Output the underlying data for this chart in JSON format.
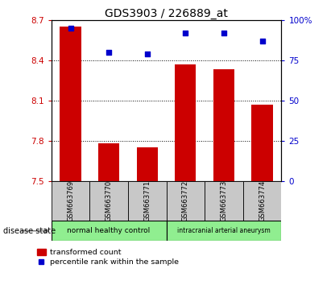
{
  "title": "GDS3903 / 226889_at",
  "samples": [
    "GSM663769",
    "GSM663770",
    "GSM663771",
    "GSM663772",
    "GSM663773",
    "GSM663774"
  ],
  "transformed_count": [
    8.65,
    7.78,
    7.75,
    8.37,
    8.33,
    8.07
  ],
  "percentile_rank": [
    95,
    80,
    79,
    92,
    92,
    87
  ],
  "ylim_left": [
    7.5,
    8.7
  ],
  "ylim_right": [
    0,
    100
  ],
  "yticks_left": [
    7.5,
    7.8,
    8.1,
    8.4,
    8.7
  ],
  "yticks_right": [
    0,
    25,
    50,
    75,
    100
  ],
  "ytick_labels_right": [
    "0",
    "25",
    "50",
    "75",
    "100%"
  ],
  "bar_color": "#cc0000",
  "scatter_color": "#0000cc",
  "group1_label": "normal healthy control",
  "group2_label": "intracranial arterial aneurysm",
  "group_color": "#90ee90",
  "group_bg_color": "#c8c8c8",
  "disease_state_label": "disease state",
  "legend_bar_label": "transformed count",
  "legend_scatter_label": "percentile rank within the sample",
  "title_fontsize": 10,
  "tick_fontsize": 7.5,
  "label_fontsize": 7,
  "left_tick_color": "#cc0000",
  "right_tick_color": "#0000cc",
  "grid_ticks": [
    7.8,
    8.1,
    8.4
  ],
  "bar_width": 0.55
}
